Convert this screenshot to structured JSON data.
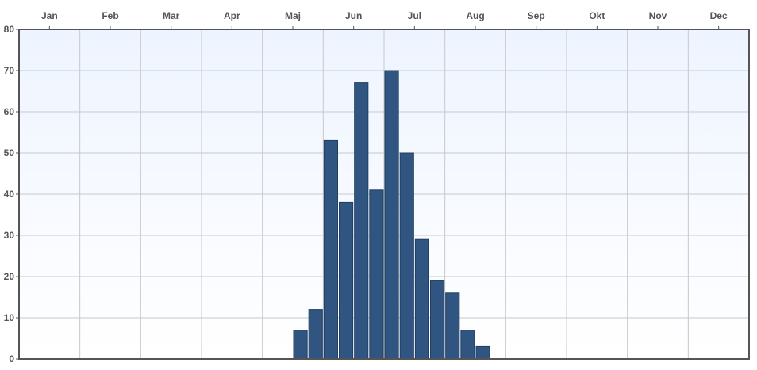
{
  "chart_data": {
    "type": "bar",
    "title": "",
    "xlabel": "",
    "ylabel": "",
    "months": [
      "Jan",
      "Feb",
      "Mar",
      "Apr",
      "Maj",
      "Jun",
      "Jul",
      "Aug",
      "Sep",
      "Okt",
      "Nov",
      "Dec"
    ],
    "ylim": [
      0,
      80
    ],
    "yticks": [
      0,
      10,
      20,
      30,
      40,
      50,
      60,
      70,
      80
    ],
    "grid": true,
    "bin_unit": "week",
    "bins_per_year": 48,
    "bars": [
      {
        "start_bin": 18,
        "value": 7
      },
      {
        "start_bin": 19,
        "value": 12
      },
      {
        "start_bin": 20,
        "value": 53
      },
      {
        "start_bin": 21,
        "value": 38
      },
      {
        "start_bin": 22,
        "value": 67
      },
      {
        "start_bin": 23,
        "value": 41
      },
      {
        "start_bin": 24,
        "value": 70
      },
      {
        "start_bin": 25,
        "value": 50
      },
      {
        "start_bin": 26,
        "value": 29
      },
      {
        "start_bin": 27,
        "value": 19
      },
      {
        "start_bin": 28,
        "value": 16
      },
      {
        "start_bin": 29,
        "value": 7
      },
      {
        "start_bin": 30,
        "value": 3
      }
    ],
    "colors": {
      "bar_fill": "#2f5580",
      "bar_stroke": "#1f3f63",
      "plot_background": "#f4f8ff",
      "grid": "#c8c8c8",
      "axis": "#555555"
    }
  }
}
